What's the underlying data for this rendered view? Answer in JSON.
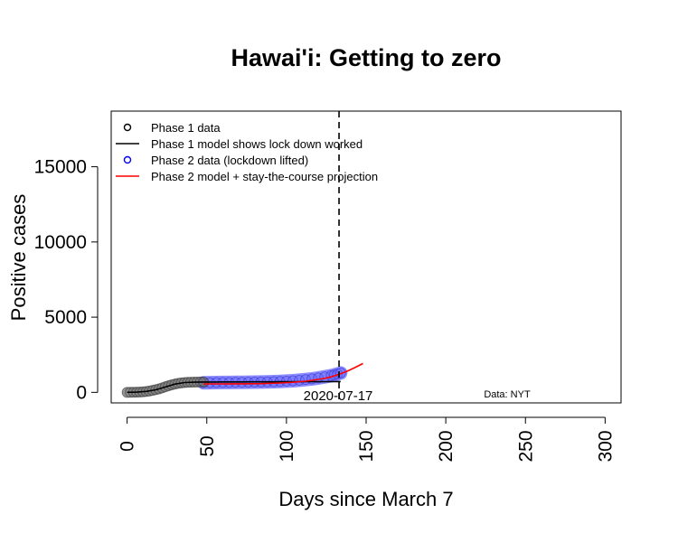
{
  "chart_data": {
    "type": "line",
    "title": "Hawai'i: Getting to zero",
    "xlabel": "Days since March 7",
    "ylabel": "Positive cases",
    "xlim": [
      -10,
      310
    ],
    "ylim": [
      -700,
      18700
    ],
    "xticks": [
      0,
      50,
      100,
      150,
      200,
      250,
      300
    ],
    "yticks": [
      0,
      5000,
      10000,
      15000
    ],
    "grid": false,
    "legend_position": "top-left",
    "legend": [
      {
        "label": "Phase 1 data",
        "kind": "point",
        "color": "#000000"
      },
      {
        "label": "Phase 1 model shows lock down worked",
        "kind": "line",
        "color": "#000000"
      },
      {
        "label": "Phase 2 data (lockdown lifted)",
        "kind": "point",
        "color": "#0000ff"
      },
      {
        "label": "Phase 2 model + stay-the-course projection",
        "kind": "line",
        "color": "#ff0000"
      }
    ],
    "vline": {
      "x": 133,
      "label": "2020-07-17"
    },
    "source_note": "Data: NYT",
    "series": [
      {
        "role": "phase1-data",
        "color": "#000000",
        "x": [
          0,
          2,
          4,
          6,
          8,
          10,
          12,
          14,
          16,
          18,
          20,
          22,
          24,
          26,
          28,
          30,
          32,
          34,
          36,
          38,
          40,
          42,
          44,
          46,
          48
        ],
        "y": [
          0,
          3,
          8,
          14,
          22,
          35,
          55,
          90,
          130,
          175,
          230,
          300,
          370,
          440,
          500,
          555,
          600,
          630,
          650,
          665,
          675,
          680,
          685,
          688,
          690
        ]
      },
      {
        "role": "phase1-model",
        "color": "#000000",
        "x": [
          0,
          6,
          12,
          18,
          24,
          30,
          36,
          42,
          48,
          54,
          60,
          66,
          72,
          78,
          84,
          90,
          96,
          102,
          108,
          114,
          120,
          126,
          132,
          134
        ],
        "y": [
          0,
          15,
          60,
          170,
          360,
          550,
          650,
          675,
          685,
          690,
          692,
          694,
          696,
          698,
          700,
          702,
          704,
          706,
          708,
          710,
          712,
          714,
          716,
          718
        ]
      },
      {
        "role": "phase2-data",
        "color": "#0000ff",
        "x": [
          48,
          52,
          56,
          60,
          64,
          68,
          72,
          76,
          80,
          84,
          88,
          92,
          96,
          100,
          104,
          108,
          112,
          116,
          120,
          124,
          128,
          130,
          132,
          134
        ],
        "y": [
          640,
          645,
          650,
          655,
          660,
          665,
          670,
          675,
          680,
          690,
          700,
          710,
          725,
          745,
          770,
          805,
          850,
          900,
          960,
          1030,
          1110,
          1160,
          1220,
          1290
        ]
      },
      {
        "role": "phase2-model",
        "color": "#ff0000",
        "x": [
          48,
          60,
          72,
          84,
          96,
          104,
          112,
          118,
          124,
          128,
          132,
          136,
          140,
          144,
          148
        ],
        "y": [
          560,
          560,
          565,
          580,
          620,
          670,
          740,
          830,
          930,
          1030,
          1160,
          1320,
          1500,
          1700,
          1920
        ]
      }
    ]
  }
}
